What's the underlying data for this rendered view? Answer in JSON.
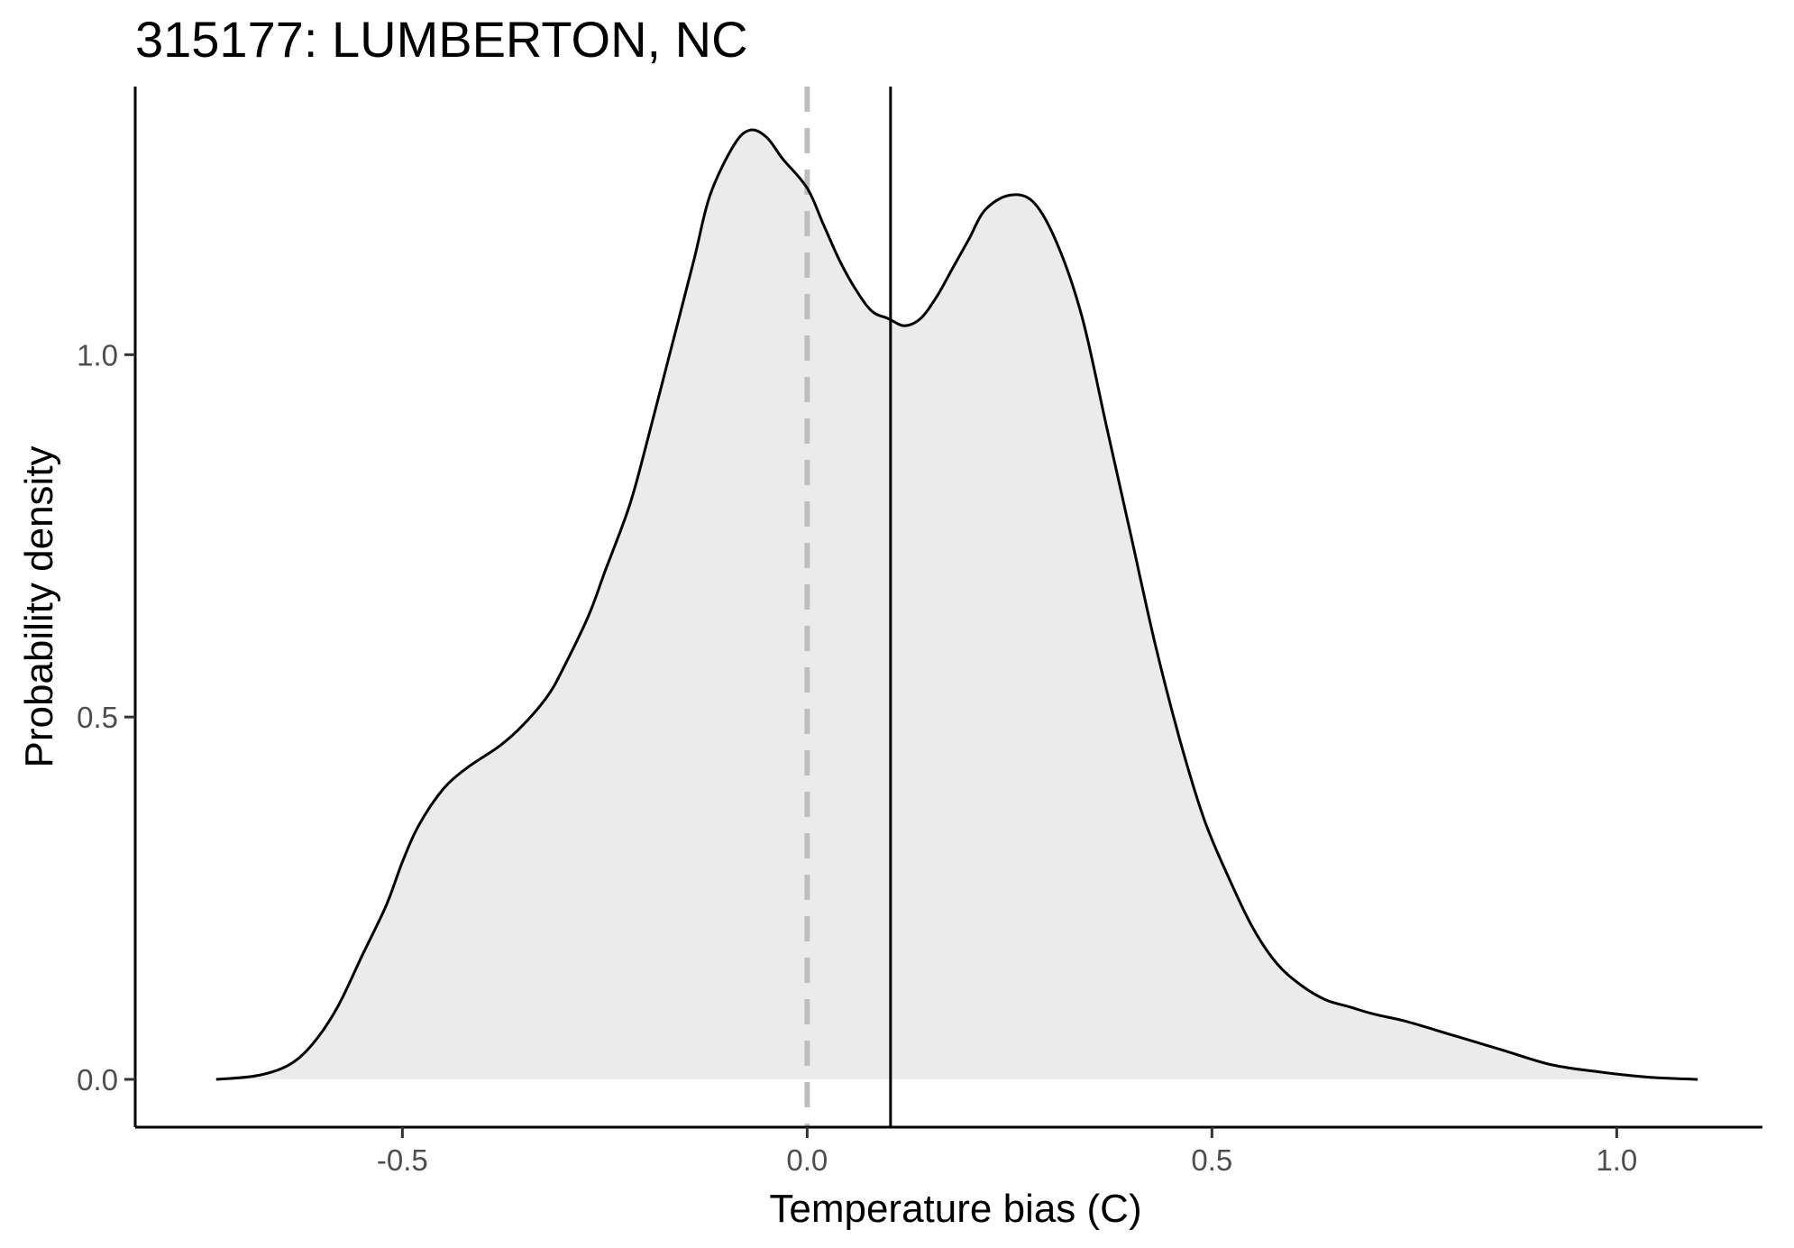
{
  "chart_data": {
    "type": "area",
    "title": "315177: LUMBERTON, NC",
    "xlabel": "Temperature bias (C)",
    "ylabel": "Probability density",
    "xlim": [
      -0.83,
      1.18
    ],
    "ylim": [
      -0.066,
      1.37
    ],
    "x_ticks": [
      -0.5,
      0.0,
      0.5,
      1.0
    ],
    "x_tick_labels": [
      "-0.5",
      "0.0",
      "0.5",
      "1.0"
    ],
    "y_ticks": [
      0.0,
      0.5,
      1.0
    ],
    "y_tick_labels": [
      "0.0",
      "0.5",
      "1.0"
    ],
    "grid": false,
    "fill_color": "#ebebeb",
    "line_color": "#000000",
    "series": [
      {
        "x": [
          -0.73,
          -0.68,
          -0.64,
          -0.61,
          -0.58,
          -0.55,
          -0.52,
          -0.5,
          -0.48,
          -0.45,
          -0.42,
          -0.38,
          -0.35,
          -0.32,
          -0.3,
          -0.27,
          -0.25,
          -0.22,
          -0.2,
          -0.17,
          -0.14,
          -0.12,
          -0.09,
          -0.07,
          -0.05,
          -0.03,
          0.0,
          0.02,
          0.04,
          0.06,
          0.08,
          0.1,
          0.12,
          0.14,
          0.16,
          0.18,
          0.2,
          0.22,
          0.25,
          0.28,
          0.31,
          0.34,
          0.37,
          0.4,
          0.43,
          0.46,
          0.49,
          0.52,
          0.55,
          0.58,
          0.61,
          0.64,
          0.67,
          0.7,
          0.74,
          0.8,
          0.86,
          0.92,
          0.98,
          1.04,
          1.1
        ],
        "y": [
          0.0,
          0.005,
          0.02,
          0.05,
          0.1,
          0.17,
          0.24,
          0.3,
          0.35,
          0.4,
          0.43,
          0.46,
          0.49,
          0.53,
          0.57,
          0.64,
          0.7,
          0.79,
          0.87,
          1.0,
          1.13,
          1.22,
          1.29,
          1.31,
          1.3,
          1.27,
          1.23,
          1.18,
          1.13,
          1.09,
          1.06,
          1.05,
          1.04,
          1.05,
          1.08,
          1.12,
          1.16,
          1.2,
          1.22,
          1.21,
          1.15,
          1.05,
          0.9,
          0.75,
          0.6,
          0.47,
          0.36,
          0.28,
          0.21,
          0.16,
          0.13,
          0.11,
          0.1,
          0.09,
          0.08,
          0.06,
          0.04,
          0.02,
          0.01,
          0.003,
          0.0
        ]
      }
    ],
    "reference_lines": [
      {
        "x": 0.0,
        "style": "dashed",
        "color": "#bebebe"
      },
      {
        "x": 0.103,
        "style": "solid",
        "color": "#000000"
      }
    ]
  }
}
